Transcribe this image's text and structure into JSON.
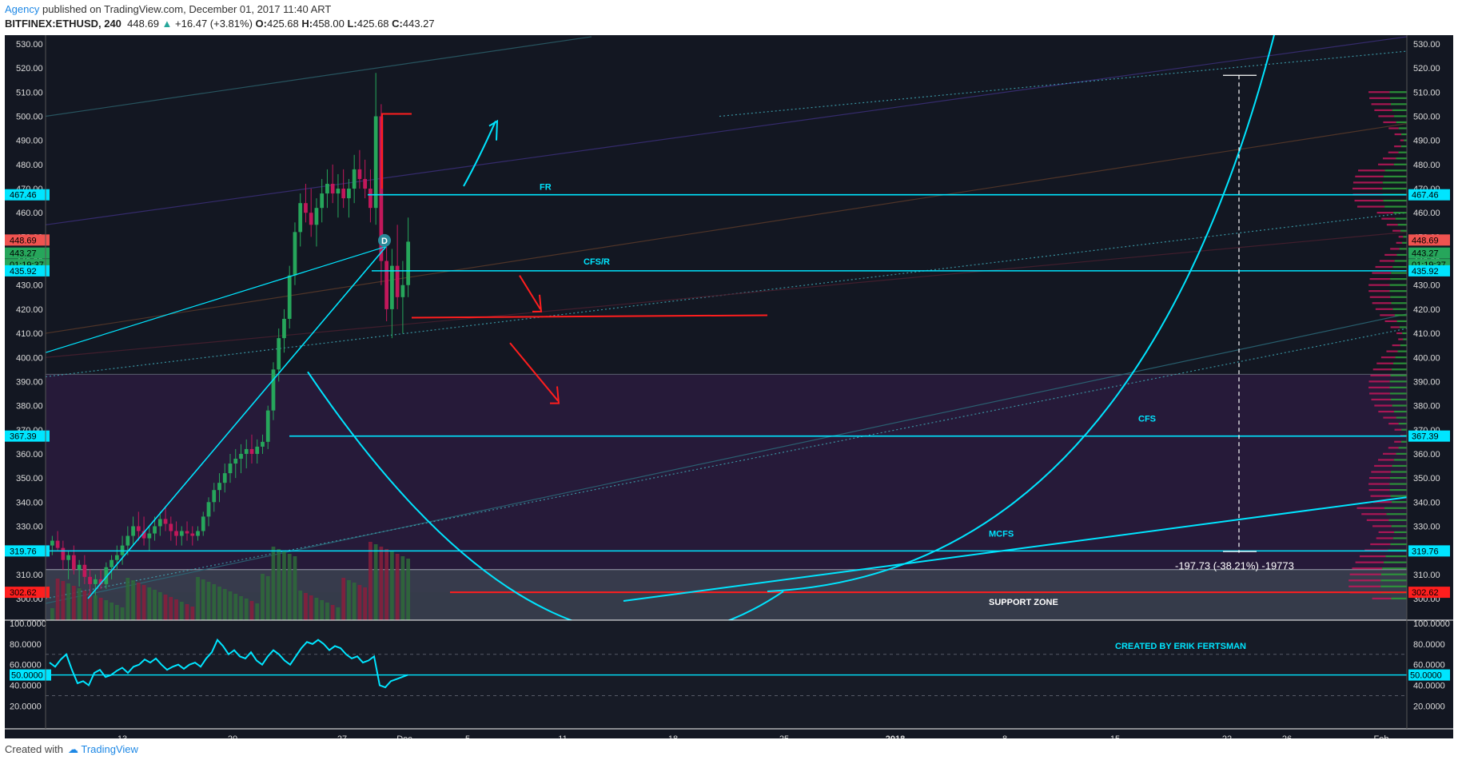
{
  "header": {
    "author": "Agency",
    "published": "published on TradingView.com, December 01, 2017 11:40 ART",
    "symbol": "BITFINEX:ETHUSD, 240",
    "last": "448.69",
    "change": "+16.47 (+3.81%)",
    "o_label": "O:",
    "o": "425.68",
    "h_label": "H:",
    "h": "458.00",
    "l_label": "L:",
    "l": "425.68",
    "c_label": "C:",
    "c": "443.27"
  },
  "footer": {
    "created_with": "Created with",
    "brand": "TradingView"
  },
  "colors": {
    "bg": "#131722",
    "panel": "#171b26",
    "cyan": "#00e5ff",
    "red": "#ff1e1e",
    "up": "#26a65b",
    "down": "#c2185b",
    "zone": "#2a1b3d",
    "support": "#3a3f4f"
  },
  "chart_data": {
    "type": "candlestick",
    "ylim": [
      295,
      533
    ],
    "price_ticks": [
      "530.00",
      "520.00",
      "510.00",
      "500.00",
      "490.00",
      "480.00",
      "470.00",
      "460.00",
      "450.00",
      "440.00",
      "430.00",
      "420.00",
      "410.00",
      "400.00",
      "390.00",
      "380.00",
      "370.00",
      "360.00",
      "350.00",
      "340.00",
      "330.00",
      "320.00",
      "310.00",
      "300.00"
    ],
    "x_ticks": [
      "13",
      "20",
      "27",
      "Dec",
      "5",
      "11",
      "18",
      "25",
      "2018",
      "8",
      "15",
      "22",
      "26",
      "Feb"
    ],
    "price_labels": [
      {
        "text": "467.46",
        "value": 467.46,
        "color": "#00e5ff"
      },
      {
        "text": "448.69",
        "value": 448.69,
        "color": "#ef5350"
      },
      {
        "text": "443.27",
        "value": 443.27,
        "color": "#26a65b"
      },
      {
        "text": "01:19:37",
        "value": 438.5,
        "color": "#26a65b"
      },
      {
        "text": "435.92",
        "value": 435.92,
        "color": "#00e5ff"
      },
      {
        "text": "367.39",
        "value": 367.39,
        "color": "#00e5ff"
      },
      {
        "text": "319.76",
        "value": 319.76,
        "color": "#00e5ff"
      },
      {
        "text": "302.62",
        "value": 302.62,
        "color": "#ff1e1e"
      }
    ],
    "levels": [
      {
        "name": "FR",
        "value": 467.46
      },
      {
        "name": "CFS/R",
        "value": 435.92
      },
      {
        "name": "CFS",
        "value": 367.39
      },
      {
        "name": "MCFS",
        "value": 319.76
      }
    ],
    "annotations": {
      "fr": "FR",
      "cfsr": "CFS/R",
      "cfs": "CFS",
      "mcfs": "MCFS",
      "support": "SUPPORT ZONE",
      "measure": "-197.73 (-38.21%) -19773",
      "credit": "CREATED BY ERIK FERTSMAN",
      "marker": "D"
    },
    "rsi": {
      "ticks": [
        "100.0000",
        "80.0000",
        "60.0000",
        "40.0000",
        "20.0000"
      ],
      "label": "50.0000",
      "values": [
        62,
        58,
        65,
        70,
        55,
        42,
        44,
        40,
        52,
        55,
        48,
        50,
        54,
        57,
        52,
        58,
        60,
        65,
        62,
        66,
        60,
        55,
        58,
        60,
        56,
        60,
        62,
        58,
        66,
        72,
        84,
        78,
        70,
        74,
        68,
        66,
        72,
        64,
        60,
        68,
        74,
        70,
        64,
        60,
        68,
        76,
        82,
        80,
        84,
        80,
        74,
        78,
        76,
        70,
        66,
        68,
        62,
        64,
        68,
        40,
        38,
        44,
        46,
        48,
        50
      ]
    },
    "candles": [
      [
        322,
        326,
        318,
        324
      ],
      [
        324,
        328,
        320,
        321
      ],
      [
        321,
        324,
        312,
        316
      ],
      [
        316,
        320,
        308,
        318
      ],
      [
        318,
        322,
        310,
        312
      ],
      [
        312,
        316,
        305,
        314
      ],
      [
        314,
        318,
        306,
        309
      ],
      [
        309,
        312,
        302,
        306
      ],
      [
        306,
        310,
        300,
        308
      ],
      [
        308,
        312,
        304,
        306
      ],
      [
        306,
        315,
        304,
        313
      ],
      [
        313,
        318,
        308,
        316
      ],
      [
        316,
        322,
        312,
        318
      ],
      [
        318,
        326,
        314,
        322
      ],
      [
        322,
        330,
        318,
        326
      ],
      [
        326,
        334,
        322,
        330
      ],
      [
        330,
        336,
        324,
        328
      ],
      [
        328,
        334,
        322,
        325
      ],
      [
        325,
        330,
        320,
        327
      ],
      [
        327,
        334,
        324,
        330
      ],
      [
        330,
        336,
        326,
        333
      ],
      [
        333,
        338,
        328,
        331
      ],
      [
        331,
        334,
        324,
        328
      ],
      [
        328,
        332,
        322,
        326
      ],
      [
        326,
        330,
        322,
        328
      ],
      [
        328,
        332,
        324,
        327
      ],
      [
        327,
        330,
        322,
        326
      ],
      [
        326,
        330,
        324,
        328
      ],
      [
        328,
        336,
        326,
        334
      ],
      [
        334,
        342,
        330,
        340
      ],
      [
        340,
        348,
        336,
        345
      ],
      [
        345,
        352,
        340,
        348
      ],
      [
        348,
        356,
        344,
        352
      ],
      [
        352,
        360,
        348,
        356
      ],
      [
        356,
        362,
        350,
        358
      ],
      [
        358,
        364,
        352,
        360
      ],
      [
        360,
        366,
        354,
        362
      ],
      [
        362,
        368,
        356,
        360
      ],
      [
        360,
        366,
        356,
        363
      ],
      [
        363,
        368,
        360,
        365
      ],
      [
        365,
        380,
        362,
        378
      ],
      [
        378,
        398,
        374,
        395
      ],
      [
        395,
        412,
        390,
        408
      ],
      [
        408,
        420,
        402,
        416
      ],
      [
        416,
        438,
        412,
        434
      ],
      [
        434,
        456,
        430,
        452
      ],
      [
        452,
        468,
        446,
        464
      ],
      [
        464,
        472,
        456,
        460
      ],
      [
        460,
        470,
        450,
        455
      ],
      [
        455,
        466,
        446,
        462
      ],
      [
        462,
        474,
        456,
        468
      ],
      [
        468,
        478,
        462,
        472
      ],
      [
        472,
        480,
        464,
        468
      ],
      [
        468,
        476,
        458,
        470
      ],
      [
        470,
        478,
        462,
        466
      ],
      [
        466,
        474,
        458,
        470
      ],
      [
        470,
        484,
        464,
        478
      ],
      [
        478,
        486,
        470,
        474
      ],
      [
        474,
        482,
        466,
        470
      ],
      [
        470,
        478,
        456,
        462
      ],
      [
        462,
        518,
        455,
        500
      ],
      [
        500,
        505,
        430,
        440
      ],
      [
        440,
        450,
        415,
        420
      ],
      [
        420,
        445,
        408,
        438
      ],
      [
        438,
        455,
        420,
        425
      ],
      [
        425,
        440,
        410,
        430
      ],
      [
        430,
        458,
        425,
        448
      ]
    ]
  }
}
